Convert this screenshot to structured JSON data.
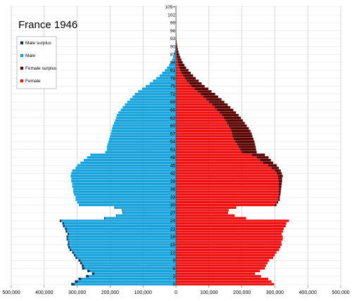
{
  "chart_data": {
    "type": "bar",
    "subtype": "population-pyramid",
    "title": "France 1946",
    "xlim": [
      -500000,
      500000
    ],
    "x_ticks": [
      -500000,
      -400000,
      -300000,
      -200000,
      -100000,
      0,
      100000,
      200000,
      300000,
      400000,
      500000
    ],
    "x_tick_labels": [
      "500,000",
      "400,000",
      "300,000",
      "200,000",
      "100,000",
      "0",
      "100,000",
      "200,000",
      "300,000",
      "400,000",
      "500,000"
    ],
    "y_tick_labels": [
      "0",
      "3",
      "6",
      "9",
      "12",
      "15",
      "18",
      "21",
      "24",
      "27",
      "30",
      "33",
      "36",
      "39",
      "42",
      "45",
      "48",
      "51",
      "54",
      "57",
      "60",
      "63",
      "66",
      "69",
      "72",
      "75",
      "78",
      "81",
      "84",
      "87",
      "90",
      "93",
      "96",
      "99",
      "102",
      "105+"
    ],
    "grid": true,
    "legend_position": "top-left",
    "legend": [
      {
        "name": "Male surplus",
        "color": "#0d2d52"
      },
      {
        "name": "Male",
        "color": "#1aa3db"
      },
      {
        "name": "Female surplus",
        "color": "#5a0000"
      },
      {
        "name": "Female",
        "color": "#ee1111"
      }
    ],
    "age_groups": [
      "0",
      "1",
      "2",
      "3",
      "4",
      "5",
      "6",
      "7",
      "8",
      "9",
      "10",
      "11",
      "12",
      "13",
      "14",
      "15",
      "16",
      "17",
      "18",
      "19",
      "20",
      "21",
      "22",
      "23",
      "24",
      "25",
      "26",
      "27",
      "28",
      "29",
      "30",
      "31",
      "32",
      "33",
      "34",
      "35",
      "36",
      "37",
      "38",
      "39",
      "40",
      "41",
      "42",
      "43",
      "44",
      "45",
      "46",
      "47",
      "48",
      "49",
      "50",
      "51",
      "52",
      "53",
      "54",
      "55",
      "56",
      "57",
      "58",
      "59",
      "60",
      "61",
      "62",
      "63",
      "64",
      "65",
      "66",
      "67",
      "68",
      "69",
      "70",
      "71",
      "72",
      "73",
      "74",
      "75",
      "76",
      "77",
      "78",
      "79",
      "80",
      "81",
      "82",
      "83",
      "84",
      "85",
      "86",
      "87",
      "88",
      "89",
      "90",
      "91",
      "92",
      "93",
      "94",
      "95",
      "96",
      "97",
      "98",
      "99",
      "100",
      "101",
      "102",
      "103",
      "104",
      "105+"
    ],
    "series": [
      {
        "name": "Male",
        "values": [
          308000,
          298000,
          288000,
          265000,
          248000,
          262000,
          278000,
          280000,
          285000,
          290000,
          300000,
          305000,
          310000,
          318000,
          322000,
          325000,
          324000,
          328000,
          328000,
          325000,
          330000,
          332000,
          338000,
          340000,
          348000,
          215000,
          180000,
          160000,
          162000,
          185000,
          295000,
          300000,
          305000,
          305000,
          310000,
          312000,
          312000,
          315000,
          315000,
          318000,
          318000,
          320000,
          318000,
          315000,
          305000,
          300000,
          290000,
          280000,
          270000,
          260000,
          215000,
          210000,
          210000,
          208000,
          205000,
          203000,
          200000,
          198000,
          196000,
          194000,
          192000,
          188000,
          185000,
          182000,
          180000,
          175000,
          168000,
          162000,
          155000,
          148000,
          140000,
          132000,
          125000,
          115000,
          103000,
          92000,
          80000,
          70000,
          60000,
          50000,
          42000,
          34000,
          27000,
          21000,
          16000,
          12000,
          9000,
          6500,
          4500,
          3000,
          2000,
          1300,
          800,
          500,
          300,
          180,
          100,
          60,
          30,
          15,
          8,
          4,
          2,
          1,
          0,
          0
        ]
      },
      {
        "name": "Male surplus",
        "values": [
          10000,
          9000,
          8000,
          8000,
          7000,
          7000,
          7000,
          6000,
          6000,
          6000,
          5000,
          5000,
          5000,
          5000,
          5000,
          4000,
          4000,
          4000,
          4000,
          4000,
          5000,
          5000,
          5000,
          5000,
          5000,
          3000,
          2000,
          2000,
          2000,
          2000,
          0,
          0,
          0,
          0,
          0,
          0,
          0,
          0,
          0,
          0,
          0,
          0,
          0,
          0,
          0,
          0,
          0,
          0,
          0,
          0,
          0,
          0,
          0,
          0,
          0,
          0,
          0,
          0,
          0,
          0,
          0,
          0,
          0,
          0,
          0,
          0,
          0,
          0,
          0,
          0,
          0,
          0,
          0,
          0,
          0,
          0,
          0,
          0,
          0,
          0,
          0,
          0,
          0,
          0,
          0,
          0,
          0,
          0,
          0,
          0,
          0,
          0,
          0,
          0,
          0,
          0,
          0,
          0,
          0,
          0,
          0,
          0,
          0,
          0,
          0,
          0
        ]
      },
      {
        "name": "Female",
        "values": [
          298000,
          290000,
          280000,
          258000,
          240000,
          255000,
          270000,
          273000,
          278000,
          283000,
          295000,
          300000,
          305000,
          313000,
          317000,
          321000,
          320000,
          324000,
          324000,
          321000,
          325000,
          327000,
          333000,
          335000,
          343000,
          213000,
          178000,
          158000,
          160000,
          183000,
          300000,
          305000,
          310000,
          310000,
          312000,
          312000,
          312000,
          312000,
          312000,
          312000,
          310000,
          310000,
          305000,
          300000,
          290000,
          280000,
          265000,
          255000,
          245000,
          230000,
          200000,
          195000,
          190000,
          185000,
          180000,
          175000,
          172000,
          170000,
          168000,
          165000,
          160000,
          155000,
          150000,
          145000,
          140000,
          132000,
          125000,
          117000,
          110000,
          100000,
          92000,
          83000,
          75000,
          65000,
          56000,
          47000,
          40000,
          33000,
          27000,
          22000,
          17000,
          13000,
          10000,
          7500,
          5500,
          4000,
          3000,
          2000,
          1500,
          1000,
          700,
          450,
          300,
          180,
          100,
          60,
          30,
          15,
          8,
          4,
          2,
          1,
          0,
          0,
          0,
          0
        ]
      },
      {
        "name": "Female surplus",
        "values": [
          0,
          0,
          0,
          0,
          0,
          0,
          0,
          0,
          0,
          0,
          0,
          0,
          0,
          0,
          0,
          0,
          0,
          0,
          0,
          0,
          0,
          0,
          0,
          0,
          0,
          0,
          0,
          0,
          0,
          0,
          5000,
          5000,
          5000,
          5000,
          5000,
          6000,
          7000,
          8000,
          9000,
          10000,
          12000,
          14000,
          16000,
          18000,
          22000,
          26000,
          30000,
          33000,
          36000,
          40000,
          45000,
          48000,
          52000,
          55000,
          58000,
          60000,
          60000,
          60000,
          58000,
          56000,
          55000,
          54000,
          53000,
          52000,
          50000,
          50000,
          49000,
          48000,
          47000,
          47000,
          46000,
          45000,
          44000,
          43000,
          42000,
          40000,
          38000,
          36000,
          33000,
          30000,
          28000,
          25000,
          21000,
          18000,
          15000,
          12500,
          10000,
          8000,
          6000,
          4500,
          3300,
          2300,
          1500,
          1000,
          700,
          420,
          270,
          160,
          92,
          51,
          28,
          15,
          8,
          4,
          2,
          1
        ]
      }
    ]
  }
}
